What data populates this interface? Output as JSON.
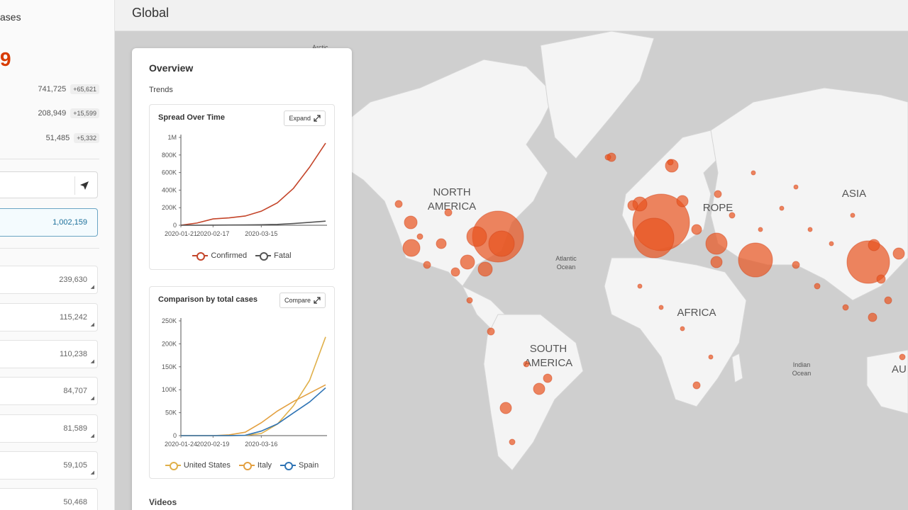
{
  "header": {
    "title": "Global"
  },
  "left_panel": {
    "title_partial": "ases",
    "total_partial": "9",
    "stats": [
      {
        "value": "741,725",
        "delta": "+65,621"
      },
      {
        "value": "208,949",
        "delta": "+15,599"
      },
      {
        "value": "51,485",
        "delta": "+5,332"
      }
    ],
    "total_cases": "1,002,159",
    "countries": [
      "239,630",
      "115,242",
      "110,238",
      "84,707",
      "81,589",
      "59,105",
      "50,468"
    ]
  },
  "map": {
    "labels": {
      "north_america": [
        "NORTH",
        "AMERICA"
      ],
      "south_america": [
        "SOUTH",
        "AMERICA"
      ],
      "europe": "ROPE",
      "africa": "AFRICA",
      "asia": "ASIA",
      "australia": "AU",
      "atlantic": [
        "Atlantic",
        "Ocean"
      ],
      "indian": [
        "Indian",
        "Ocean"
      ],
      "arctic": "Arctic"
    },
    "bubble_color": "#e8531e"
  },
  "overview": {
    "title": "Overview",
    "trends_label": "Trends",
    "videos_label": "Videos",
    "spread_chart": {
      "title": "Spread Over Time",
      "button": "Expand",
      "y_ticks": [
        "1M",
        "800K",
        "600K",
        "400K",
        "200K",
        "0"
      ],
      "x_ticks": [
        "2020-01-21",
        "2020-02-17",
        "2020-03-15"
      ],
      "legend": [
        "Confirmed",
        "Fatal"
      ],
      "colors": [
        "#c4452a",
        "#555555"
      ]
    },
    "compare_chart": {
      "title": "Comparison by total cases",
      "button": "Compare",
      "y_ticks": [
        "250K",
        "200K",
        "150K",
        "100K",
        "50K",
        "0"
      ],
      "x_ticks": [
        "2020-01-24",
        "2020-02-19",
        "2020-03-16"
      ],
      "legend": [
        "United States",
        "Italy",
        "Spain"
      ],
      "colors": [
        "#e0b04a",
        "#e3a040",
        "#2f74b5"
      ]
    }
  },
  "chart_data": [
    {
      "type": "line",
      "title": "Spread Over Time",
      "x": [
        "2020-01-21",
        "2020-02-05",
        "2020-02-17",
        "2020-02-28",
        "2020-03-07",
        "2020-03-15",
        "2020-03-20",
        "2020-03-25",
        "2020-03-29",
        "2020-04-01"
      ],
      "ylim": [
        0,
        1000000
      ],
      "series": [
        {
          "name": "Confirmed",
          "values": [
            300,
            25000,
            72000,
            84000,
            105000,
            160000,
            255000,
            420000,
            660000,
            935000
          ]
        },
        {
          "name": "Fatal",
          "values": [
            0,
            500,
            1900,
            2900,
            3600,
            6000,
            10000,
            20000,
            33000,
            47000
          ]
        }
      ]
    },
    {
      "type": "line",
      "title": "Comparison by total cases",
      "x": [
        "2020-01-24",
        "2020-02-05",
        "2020-02-19",
        "2020-03-01",
        "2020-03-08",
        "2020-03-16",
        "2020-03-21",
        "2020-03-25",
        "2020-03-28",
        "2020-04-01"
      ],
      "ylim": [
        0,
        250000
      ],
      "series": [
        {
          "name": "United States",
          "values": [
            0,
            12,
            15,
            70,
            500,
            4600,
            25000,
            65000,
            120000,
            215000
          ]
        },
        {
          "name": "Italy",
          "values": [
            0,
            2,
            3,
            1700,
            7400,
            27980,
            53600,
            74400,
            92500,
            110600
          ]
        },
        {
          "name": "Spain",
          "values": [
            0,
            1,
            2,
            80,
            670,
            9900,
            25400,
            49500,
            73200,
            104100
          ]
        }
      ]
    }
  ]
}
